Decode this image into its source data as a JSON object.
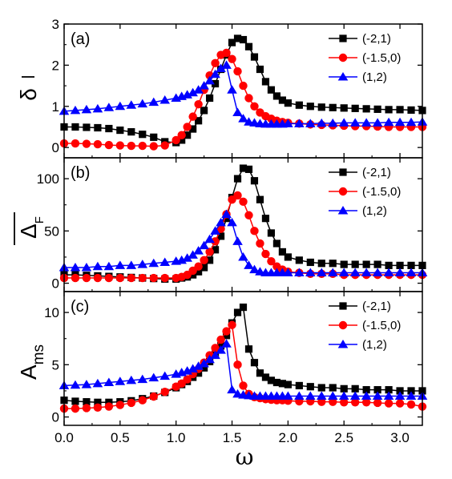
{
  "chart_data": [
    {
      "type": "line",
      "panel_label": "(a)",
      "ylabel": "δ̄",
      "xlim": [
        0,
        3.2
      ],
      "ylim": [
        -0.25,
        3
      ],
      "yticks": [
        0,
        1,
        2,
        3
      ],
      "legend": "top-right",
      "series": [
        {
          "name": "(-2,1)",
          "color": "#000000",
          "marker": "square",
          "x": [
            0.0,
            0.1,
            0.2,
            0.3,
            0.4,
            0.5,
            0.6,
            0.7,
            0.8,
            0.9,
            1.0,
            1.05,
            1.1,
            1.15,
            1.2,
            1.25,
            1.3,
            1.35,
            1.4,
            1.45,
            1.5,
            1.55,
            1.6,
            1.65,
            1.7,
            1.75,
            1.8,
            1.85,
            1.9,
            1.95,
            2.0,
            2.1,
            2.2,
            2.3,
            2.4,
            2.5,
            2.6,
            2.7,
            2.8,
            2.9,
            3.0,
            3.1,
            3.2
          ],
          "y": [
            0.5,
            0.5,
            0.49,
            0.48,
            0.46,
            0.42,
            0.38,
            0.32,
            0.25,
            0.14,
            0.12,
            0.18,
            0.3,
            0.45,
            0.65,
            0.9,
            1.2,
            1.55,
            1.9,
            2.25,
            2.55,
            2.65,
            2.62,
            2.45,
            2.2,
            1.9,
            1.6,
            1.4,
            1.25,
            1.15,
            1.08,
            1.03,
            1.0,
            0.98,
            0.97,
            0.96,
            0.95,
            0.94,
            0.93,
            0.92,
            0.92,
            0.91,
            0.9
          ]
        },
        {
          "name": "(-1.5,0)",
          "color": "#ff0000",
          "marker": "circle",
          "x": [
            0.0,
            0.1,
            0.2,
            0.3,
            0.4,
            0.5,
            0.6,
            0.7,
            0.8,
            0.9,
            1.0,
            1.05,
            1.1,
            1.15,
            1.2,
            1.25,
            1.3,
            1.35,
            1.4,
            1.45,
            1.5,
            1.55,
            1.6,
            1.65,
            1.7,
            1.75,
            1.8,
            1.85,
            1.9,
            1.95,
            2.0,
            2.1,
            2.2,
            2.3,
            2.4,
            2.5,
            2.6,
            2.7,
            2.8,
            2.9,
            3.0,
            3.1,
            3.2
          ],
          "y": [
            0.1,
            0.1,
            0.09,
            0.08,
            0.06,
            0.05,
            0.04,
            0.04,
            0.03,
            0.05,
            0.18,
            0.3,
            0.5,
            0.75,
            1.05,
            1.4,
            1.75,
            2.05,
            2.25,
            2.3,
            2.15,
            1.85,
            1.5,
            1.2,
            1.0,
            0.85,
            0.76,
            0.7,
            0.65,
            0.62,
            0.6,
            0.58,
            0.56,
            0.55,
            0.54,
            0.53,
            0.52,
            0.52,
            0.51,
            0.5,
            0.5,
            0.5,
            0.5
          ]
        },
        {
          "name": "(1,2)",
          "color": "#0000ff",
          "marker": "triangle",
          "x": [
            0.0,
            0.1,
            0.2,
            0.3,
            0.4,
            0.5,
            0.6,
            0.7,
            0.8,
            0.9,
            1.0,
            1.05,
            1.1,
            1.15,
            1.2,
            1.25,
            1.3,
            1.35,
            1.4,
            1.45,
            1.5,
            1.55,
            1.6,
            1.65,
            1.7,
            1.75,
            1.8,
            1.85,
            1.9,
            1.95,
            2.0,
            2.1,
            2.2,
            2.3,
            2.4,
            2.5,
            2.6,
            2.7,
            2.8,
            2.9,
            3.0,
            3.1,
            3.2
          ],
          "y": [
            0.88,
            0.9,
            0.92,
            0.94,
            0.97,
            1.0,
            1.03,
            1.06,
            1.1,
            1.15,
            1.2,
            1.24,
            1.28,
            1.33,
            1.4,
            1.5,
            1.62,
            1.78,
            1.92,
            2.0,
            1.4,
            0.85,
            0.7,
            0.62,
            0.6,
            0.58,
            0.57,
            0.57,
            0.57,
            0.57,
            0.58,
            0.58,
            0.58,
            0.59,
            0.59,
            0.6,
            0.6,
            0.6,
            0.6,
            0.61,
            0.61,
            0.61,
            0.62
          ]
        }
      ]
    },
    {
      "type": "line",
      "panel_label": "(b)",
      "ylabel": "Δ̄F",
      "xlim": [
        0,
        3.2
      ],
      "ylim": [
        -8,
        120
      ],
      "yticks": [
        0,
        50,
        100
      ],
      "legend": "top-right",
      "series": [
        {
          "name": "(-2,1)",
          "color": "#000000",
          "marker": "square",
          "x": [
            0.0,
            0.1,
            0.2,
            0.3,
            0.4,
            0.5,
            0.6,
            0.7,
            0.8,
            0.9,
            1.0,
            1.05,
            1.1,
            1.15,
            1.2,
            1.25,
            1.3,
            1.35,
            1.4,
            1.45,
            1.5,
            1.55,
            1.6,
            1.65,
            1.7,
            1.75,
            1.8,
            1.85,
            1.9,
            1.95,
            2.0,
            2.1,
            2.2,
            2.3,
            2.4,
            2.5,
            2.6,
            2.7,
            2.8,
            2.9,
            3.0,
            3.1,
            3.2
          ],
          "y": [
            8,
            8,
            7.5,
            7,
            6.5,
            6,
            5.5,
            5,
            4.5,
            4,
            4,
            5,
            6,
            8,
            11,
            15,
            22,
            32,
            45,
            62,
            82,
            100,
            110,
            109,
            98,
            80,
            62,
            48,
            38,
            30,
            25,
            22,
            20,
            19,
            19,
            18,
            18,
            18,
            18,
            17,
            17,
            17,
            17
          ]
        },
        {
          "name": "(-1.5,0)",
          "color": "#ff0000",
          "marker": "circle",
          "x": [
            0.0,
            0.1,
            0.2,
            0.3,
            0.4,
            0.5,
            0.6,
            0.7,
            0.8,
            0.9,
            1.0,
            1.05,
            1.1,
            1.15,
            1.2,
            1.25,
            1.3,
            1.35,
            1.4,
            1.45,
            1.5,
            1.55,
            1.6,
            1.65,
            1.7,
            1.75,
            1.8,
            1.85,
            1.9,
            1.95,
            2.0,
            2.1,
            2.2,
            2.3,
            2.4,
            2.5,
            2.6,
            2.7,
            2.8,
            2.9,
            3.0,
            3.1,
            3.2
          ],
          "y": [
            5,
            5,
            5,
            5,
            5,
            5,
            5,
            5,
            5,
            5,
            5,
            6,
            8,
            12,
            16,
            22,
            30,
            40,
            52,
            66,
            80,
            84,
            78,
            65,
            50,
            38,
            28,
            21,
            16,
            13,
            11,
            10,
            9,
            9,
            9,
            8,
            8,
            8,
            8,
            8,
            8,
            8,
            8
          ]
        },
        {
          "name": "(1,2)",
          "color": "#0000ff",
          "marker": "triangle",
          "x": [
            0.0,
            0.1,
            0.2,
            0.3,
            0.4,
            0.5,
            0.6,
            0.7,
            0.8,
            0.9,
            1.0,
            1.05,
            1.1,
            1.15,
            1.2,
            1.25,
            1.3,
            1.35,
            1.4,
            1.45,
            1.5,
            1.55,
            1.6,
            1.65,
            1.7,
            1.75,
            1.8,
            1.85,
            1.9,
            1.95,
            2.0,
            2.1,
            2.2,
            2.3,
            2.4,
            2.5,
            2.6,
            2.7,
            2.8,
            2.9,
            3.0,
            3.1,
            3.2
          ],
          "y": [
            15,
            15,
            15,
            16,
            16,
            17,
            17,
            18,
            19,
            20,
            21,
            22,
            24,
            27,
            31,
            36,
            42,
            50,
            58,
            66,
            58,
            40,
            25,
            17,
            13,
            11,
            10,
            10,
            10,
            10,
            10,
            10,
            10,
            10,
            10,
            10,
            10,
            10,
            10,
            10,
            10,
            10,
            10
          ]
        }
      ]
    },
    {
      "type": "line",
      "panel_label": "(c)",
      "ylabel": "Ams",
      "xlim": [
        0,
        3.2
      ],
      "ylim": [
        -0.8,
        12
      ],
      "yticks": [
        0,
        5,
        10
      ],
      "legend": "top-right",
      "series": [
        {
          "name": "(-2,1)",
          "color": "#000000",
          "marker": "square",
          "x": [
            0.0,
            0.1,
            0.2,
            0.3,
            0.4,
            0.5,
            0.6,
            0.7,
            0.8,
            0.9,
            1.0,
            1.05,
            1.1,
            1.15,
            1.2,
            1.25,
            1.3,
            1.35,
            1.4,
            1.45,
            1.5,
            1.55,
            1.6,
            1.65,
            1.7,
            1.75,
            1.8,
            1.85,
            1.9,
            1.95,
            2.0,
            2.1,
            2.2,
            2.3,
            2.4,
            2.5,
            2.6,
            2.7,
            2.8,
            2.9,
            3.0,
            3.1,
            3.2
          ],
          "y": [
            1.6,
            1.5,
            1.45,
            1.4,
            1.4,
            1.45,
            1.55,
            1.75,
            2.0,
            2.35,
            2.8,
            3.1,
            3.4,
            3.8,
            4.2,
            4.7,
            5.3,
            6.0,
            6.8,
            7.8,
            9.0,
            10.0,
            10.5,
            6.5,
            5.2,
            4.2,
            3.8,
            3.5,
            3.3,
            3.2,
            3.1,
            3.0,
            2.9,
            2.8,
            2.8,
            2.7,
            2.7,
            2.6,
            2.6,
            2.6,
            2.5,
            2.5,
            2.5
          ]
        },
        {
          "name": "(-1.5,0)",
          "color": "#ff0000",
          "marker": "circle",
          "x": [
            0.0,
            0.1,
            0.2,
            0.3,
            0.4,
            0.5,
            0.6,
            0.7,
            0.8,
            0.9,
            1.0,
            1.05,
            1.1,
            1.15,
            1.2,
            1.25,
            1.3,
            1.35,
            1.4,
            1.45,
            1.5,
            1.55,
            1.6,
            1.65,
            1.7,
            1.75,
            1.8,
            1.85,
            1.9,
            1.95,
            2.0,
            2.1,
            2.2,
            2.3,
            2.4,
            2.5,
            2.6,
            2.7,
            2.8,
            2.9,
            3.0,
            3.1,
            3.2
          ],
          "y": [
            0.8,
            0.8,
            0.85,
            0.9,
            1.0,
            1.15,
            1.35,
            1.6,
            1.95,
            2.4,
            2.9,
            3.2,
            3.6,
            4.1,
            4.6,
            5.2,
            5.9,
            6.6,
            7.4,
            8.2,
            8.8,
            5.0,
            3.0,
            2.2,
            1.9,
            1.8,
            1.7,
            1.65,
            1.6,
            1.6,
            1.55,
            1.5,
            1.5,
            1.45,
            1.45,
            1.4,
            1.4,
            1.4,
            1.35,
            1.3,
            1.3,
            1.2,
            1.0
          ]
        },
        {
          "name": "(1,2)",
          "color": "#0000ff",
          "marker": "triangle",
          "x": [
            0.0,
            0.1,
            0.2,
            0.3,
            0.4,
            0.5,
            0.6,
            0.7,
            0.8,
            0.9,
            1.0,
            1.05,
            1.1,
            1.15,
            1.2,
            1.25,
            1.3,
            1.35,
            1.4,
            1.45,
            1.5,
            1.55,
            1.6,
            1.65,
            1.7,
            1.75,
            1.8,
            1.85,
            1.9,
            1.95,
            2.0,
            2.1,
            2.2,
            2.3,
            2.4,
            2.5,
            2.6,
            2.7,
            2.8,
            2.9,
            3.0,
            3.1,
            3.2
          ],
          "y": [
            3.0,
            3.05,
            3.1,
            3.2,
            3.3,
            3.4,
            3.5,
            3.6,
            3.75,
            3.9,
            4.1,
            4.25,
            4.4,
            4.6,
            4.85,
            5.1,
            5.5,
            5.9,
            6.4,
            7.0,
            2.6,
            2.2,
            2.1,
            2.05,
            2.0,
            2.0,
            2.0,
            2.0,
            2.0,
            2.0,
            2.0,
            2.0,
            2.0,
            2.0,
            2.0,
            2.0,
            2.0,
            2.0,
            2.0,
            2.0,
            2.0,
            2.0,
            2.0
          ]
        }
      ]
    }
  ],
  "xaxis": {
    "xlabel": "ω",
    "ticks": [
      0.0,
      0.5,
      1.0,
      1.5,
      2.0,
      2.5,
      3.0
    ],
    "tick_labels": [
      "0.0",
      "0.5",
      "1.0",
      "1.5",
      "2.0",
      "2.5",
      "3.0"
    ]
  },
  "ylabels": {
    "a_main": "δ",
    "b_main": "Δ",
    "b_sub": "F",
    "c_main": "A",
    "c_sub": "ms"
  }
}
